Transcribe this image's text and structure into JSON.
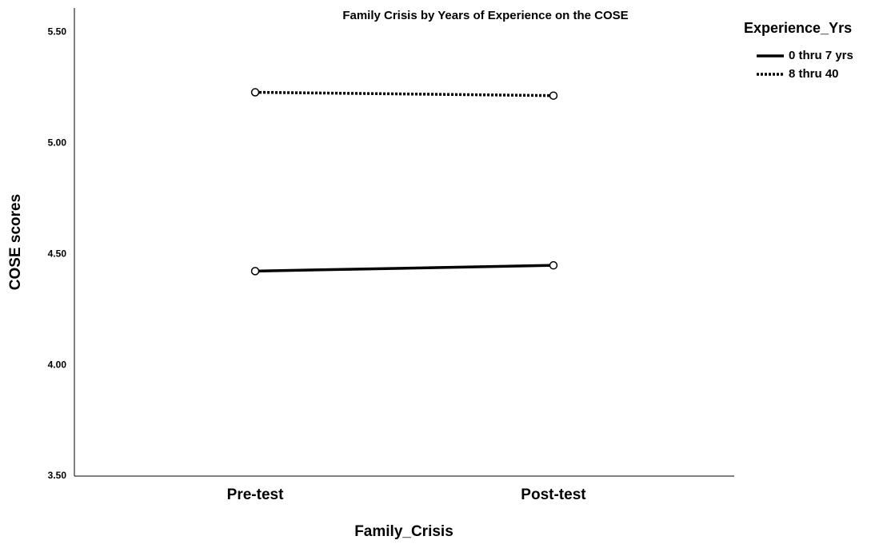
{
  "chart_data": {
    "type": "line",
    "title": "Family Crisis by Years of Experience on the COSE",
    "x_label": "Family_Crisis",
    "y_label": "COSE scores",
    "categories": [
      "Pre-test",
      "Post-test"
    ],
    "legend_title": "Experience_Yrs",
    "legend": "right",
    "series": [
      {
        "name": "0 thru 7 yrs",
        "color": "#000000",
        "style": "solid",
        "values": [
          4.424,
          4.45
        ]
      },
      {
        "name": "8 thru 40",
        "color": "#000000",
        "style": "dotted",
        "values": [
          5.23,
          5.215
        ]
      }
    ],
    "ylim": [
      3.5,
      5.61
    ],
    "yticks": [
      {
        "value": 3.5,
        "label": "3.50"
      },
      {
        "value": 4.0,
        "label": "4.00"
      },
      {
        "value": 4.5,
        "label": "4.50"
      },
      {
        "value": 5.0,
        "label": "5.00"
      },
      {
        "value": 5.5,
        "label": "5.50"
      }
    ],
    "grid": false
  }
}
